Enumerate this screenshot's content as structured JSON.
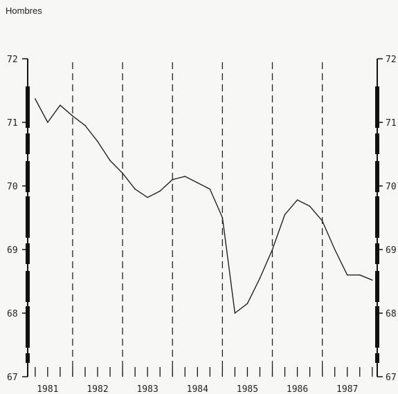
{
  "title": "Hombres",
  "chart_data": {
    "type": "line",
    "title": "Hombres",
    "xlabel": "",
    "ylabel": "",
    "ylim": [
      67,
      72
    ],
    "xlim": [
      1980.6,
      1987.6
    ],
    "y_ticks": [
      72,
      71,
      70,
      69,
      68,
      67
    ],
    "y_tick_labels": [
      "72",
      "71",
      "70",
      "69",
      "68",
      "67"
    ],
    "year_labels": [
      "1981",
      "1982",
      "1983",
      "1984",
      "1985",
      "1986",
      "1987"
    ],
    "year_dividers": [
      1981.5,
      1982.5,
      1983.5,
      1984.5,
      1985.5,
      1986.5
    ],
    "grid": false,
    "series": [
      {
        "values": [
          [
            1980.75,
            71.37
          ],
          [
            1981.0,
            71.0
          ],
          [
            1981.25,
            71.27
          ],
          [
            1981.5,
            71.1
          ],
          [
            1981.75,
            70.95
          ],
          [
            1982.0,
            70.7
          ],
          [
            1982.25,
            70.4
          ],
          [
            1982.5,
            70.2
          ],
          [
            1982.75,
            69.95
          ],
          [
            1983.0,
            69.82
          ],
          [
            1983.25,
            69.92
          ],
          [
            1983.5,
            70.1
          ],
          [
            1983.75,
            70.15
          ],
          [
            1984.0,
            70.05
          ],
          [
            1984.25,
            69.95
          ],
          [
            1984.5,
            69.5
          ],
          [
            1984.75,
            68.0
          ],
          [
            1985.0,
            68.15
          ],
          [
            1985.25,
            68.55
          ],
          [
            1985.5,
            69.0
          ],
          [
            1985.75,
            69.55
          ],
          [
            1986.0,
            69.78
          ],
          [
            1986.25,
            69.68
          ],
          [
            1986.5,
            69.45
          ],
          [
            1986.75,
            69.0
          ],
          [
            1987.0,
            68.6
          ],
          [
            1987.25,
            68.6
          ],
          [
            1987.5,
            68.52
          ]
        ]
      }
    ]
  }
}
